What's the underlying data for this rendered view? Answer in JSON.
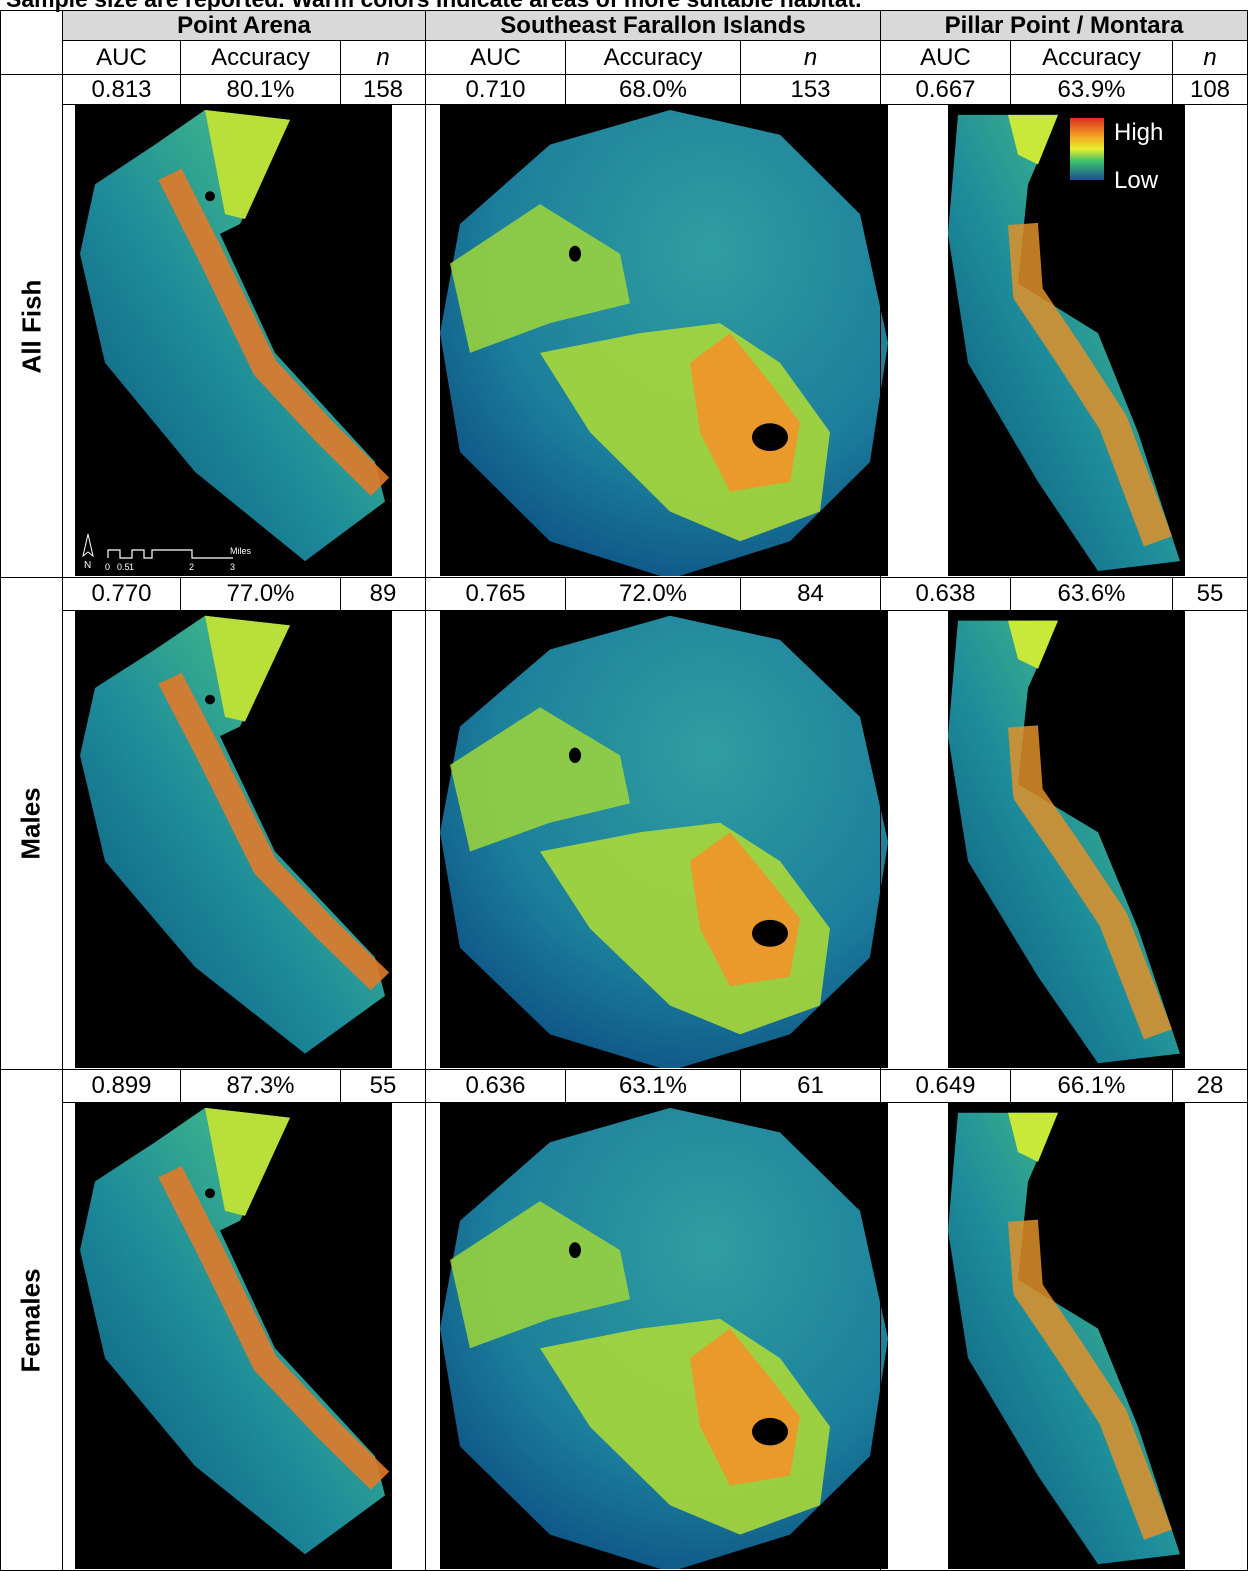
{
  "header": {
    "caption": "Sample size are reported. Warm colors indicate areas of more suitable habitat.",
    "sites": [
      "Point Arena",
      "Southeast Farallon Islands",
      "Pillar Point / Montara"
    ],
    "columns": [
      "AUC",
      "Accuracy",
      "n"
    ]
  },
  "rows": [
    {
      "label": "All Fish",
      "stats": [
        [
          "0.813",
          "80.1%",
          "158"
        ],
        [
          "0.710",
          "68.0%",
          "153"
        ],
        [
          "0.667",
          "63.9%",
          "108"
        ]
      ]
    },
    {
      "label": "Males",
      "stats": [
        [
          "0.770",
          "77.0%",
          "89"
        ],
        [
          "0.765",
          "72.0%",
          "84"
        ],
        [
          "0.638",
          "63.6%",
          "55"
        ]
      ]
    },
    {
      "label": "Females",
      "stats": [
        [
          "0.899",
          "87.3%",
          "55"
        ],
        [
          "0.636",
          "63.1%",
          "61"
        ],
        [
          "0.649",
          "66.1%",
          "28"
        ]
      ]
    }
  ],
  "legend": {
    "high": "High",
    "low": "Low"
  },
  "scale_bar": {
    "north": "N",
    "ticks": [
      "0",
      "0.5",
      "1",
      "2",
      "3"
    ],
    "unit": "Miles"
  }
}
